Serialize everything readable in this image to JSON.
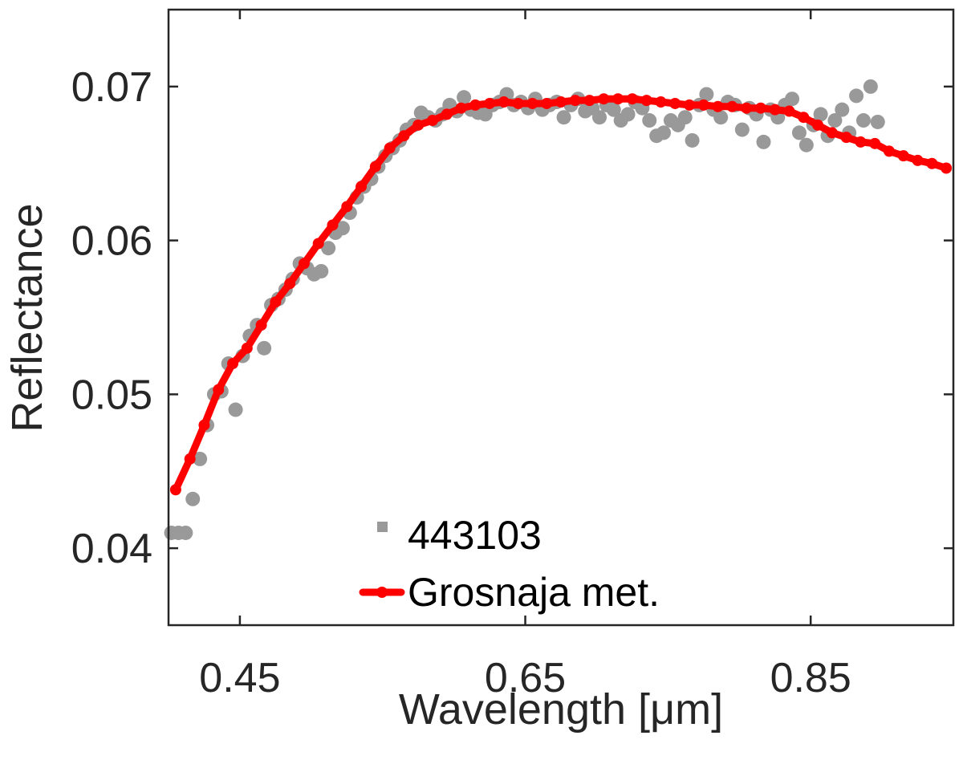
{
  "chart_data": {
    "type": "scatter",
    "xlabel": "Wavelength [μm]",
    "ylabel": "Reflectance",
    "xlim": [
      0.4,
      0.95
    ],
    "ylim": [
      0.035,
      0.075
    ],
    "xticks": [
      0.45,
      0.65,
      0.85
    ],
    "xtick_labels": [
      "0.45",
      "0.65",
      "0.85"
    ],
    "yticks": [
      0.04,
      0.05,
      0.06,
      0.07
    ],
    "ytick_labels": [
      "0.04",
      "0.05",
      "0.06",
      "0.07"
    ],
    "grid": false,
    "legend_position": "bottom-center",
    "series": [
      {
        "name": "443103",
        "kind": "scatter",
        "color": "#999999",
        "x": [
          0.402,
          0.407,
          0.412,
          0.417,
          0.422,
          0.427,
          0.432,
          0.437,
          0.442,
          0.447,
          0.452,
          0.457,
          0.462,
          0.467,
          0.472,
          0.477,
          0.482,
          0.487,
          0.492,
          0.497,
          0.502,
          0.507,
          0.512,
          0.517,
          0.522,
          0.527,
          0.532,
          0.537,
          0.542,
          0.547,
          0.552,
          0.557,
          0.562,
          0.567,
          0.572,
          0.577,
          0.582,
          0.587,
          0.592,
          0.597,
          0.602,
          0.607,
          0.612,
          0.617,
          0.622,
          0.627,
          0.632,
          0.637,
          0.642,
          0.647,
          0.652,
          0.657,
          0.662,
          0.667,
          0.672,
          0.677,
          0.682,
          0.687,
          0.692,
          0.697,
          0.702,
          0.707,
          0.712,
          0.717,
          0.722,
          0.727,
          0.732,
          0.737,
          0.742,
          0.747,
          0.752,
          0.757,
          0.762,
          0.767,
          0.772,
          0.777,
          0.782,
          0.787,
          0.792,
          0.797,
          0.802,
          0.807,
          0.812,
          0.817,
          0.822,
          0.827,
          0.832,
          0.837,
          0.842,
          0.847,
          0.852,
          0.857,
          0.862,
          0.867,
          0.872,
          0.877,
          0.882,
          0.887,
          0.892,
          0.897
        ],
        "y": [
          0.041,
          0.041,
          0.041,
          0.0432,
          0.0458,
          0.048,
          0.05,
          0.0502,
          0.052,
          0.049,
          0.0525,
          0.0538,
          0.0545,
          0.053,
          0.0558,
          0.0562,
          0.0568,
          0.0575,
          0.0585,
          0.0582,
          0.0578,
          0.058,
          0.0595,
          0.0605,
          0.0608,
          0.0618,
          0.0628,
          0.0635,
          0.064,
          0.0648,
          0.0655,
          0.066,
          0.0665,
          0.0672,
          0.0675,
          0.0683,
          0.068,
          0.0678,
          0.0682,
          0.0688,
          0.0684,
          0.0693,
          0.0685,
          0.0683,
          0.0682,
          0.0688,
          0.069,
          0.0695,
          0.0688,
          0.069,
          0.0686,
          0.0692,
          0.0685,
          0.0688,
          0.069,
          0.068,
          0.0688,
          0.0692,
          0.0684,
          0.0686,
          0.068,
          0.0688,
          0.0685,
          0.0678,
          0.0682,
          0.069,
          0.0686,
          0.0678,
          0.0668,
          0.067,
          0.0678,
          0.0675,
          0.068,
          0.0665,
          0.0688,
          0.0695,
          0.0685,
          0.068,
          0.069,
          0.0688,
          0.0672,
          0.0686,
          0.0682,
          0.0664,
          0.0685,
          0.068,
          0.0688,
          0.0692,
          0.067,
          0.0662,
          0.0675,
          0.0682,
          0.0668,
          0.0678,
          0.0685,
          0.067,
          0.0694,
          0.0678,
          0.07,
          0.0677
        ]
      },
      {
        "name": "Grosnaja met.",
        "kind": "line",
        "color": "#ff0000",
        "x": [
          0.405,
          0.415,
          0.425,
          0.435,
          0.445,
          0.455,
          0.465,
          0.475,
          0.485,
          0.495,
          0.505,
          0.515,
          0.525,
          0.535,
          0.545,
          0.555,
          0.565,
          0.575,
          0.585,
          0.595,
          0.605,
          0.615,
          0.625,
          0.635,
          0.645,
          0.655,
          0.665,
          0.675,
          0.685,
          0.695,
          0.705,
          0.715,
          0.725,
          0.735,
          0.745,
          0.755,
          0.765,
          0.775,
          0.785,
          0.795,
          0.805,
          0.815,
          0.825,
          0.835,
          0.845,
          0.855,
          0.865,
          0.875,
          0.885,
          0.895,
          0.905,
          0.915,
          0.925,
          0.935,
          0.945
        ],
        "y": [
          0.0438,
          0.0458,
          0.048,
          0.0503,
          0.052,
          0.053,
          0.0545,
          0.056,
          0.0572,
          0.0585,
          0.0598,
          0.061,
          0.0622,
          0.0635,
          0.0648,
          0.066,
          0.0668,
          0.0675,
          0.0678,
          0.0682,
          0.0686,
          0.0688,
          0.0689,
          0.069,
          0.0689,
          0.0689,
          0.0689,
          0.069,
          0.0691,
          0.0691,
          0.0692,
          0.0692,
          0.0692,
          0.0691,
          0.069,
          0.0689,
          0.0688,
          0.0688,
          0.0687,
          0.0687,
          0.0686,
          0.0686,
          0.0685,
          0.0684,
          0.068,
          0.0675,
          0.067,
          0.0667,
          0.0664,
          0.0663,
          0.0658,
          0.0655,
          0.0652,
          0.065,
          0.0647
        ]
      }
    ]
  }
}
